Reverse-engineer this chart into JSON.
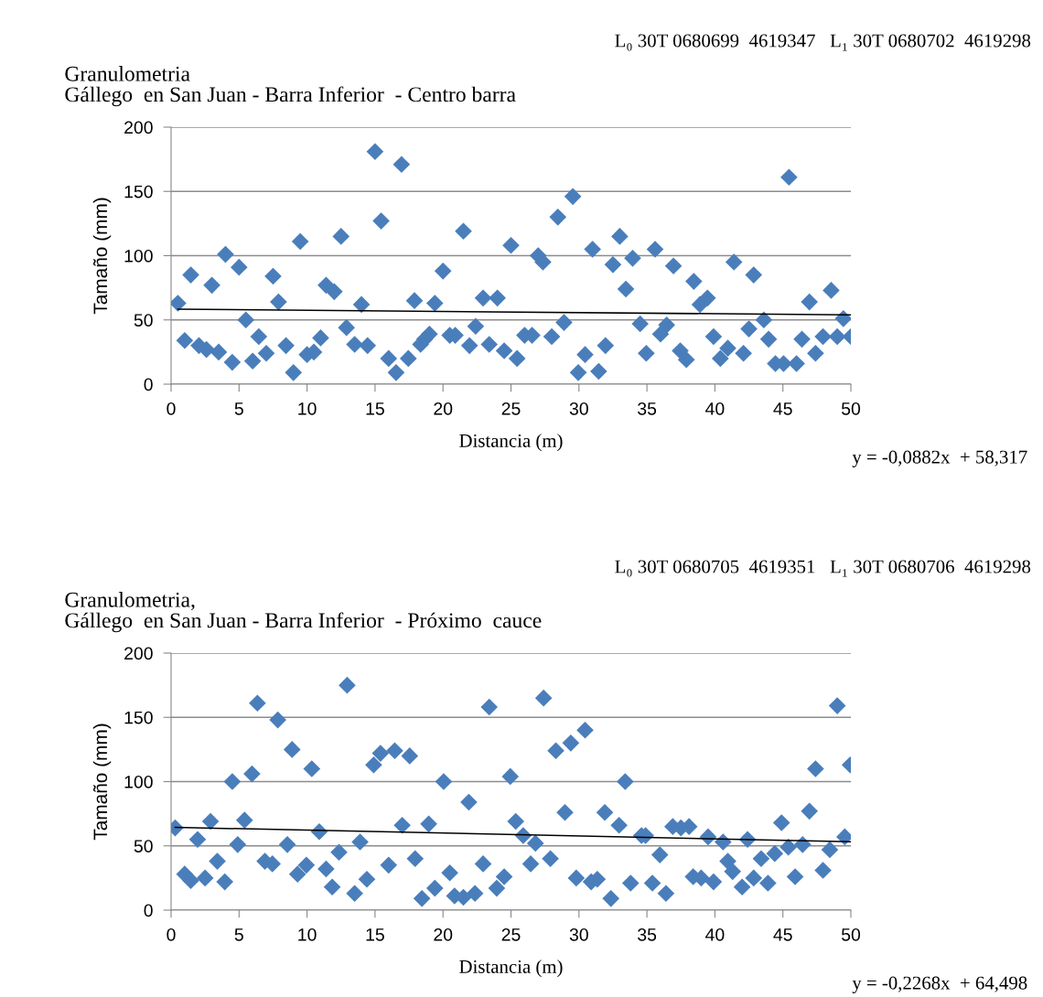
{
  "chart_data": [
    {
      "type": "scatter",
      "title": "Granulometria",
      "subtitle": "Gállego  en San Juan - Barra Inferior  - Centro barra",
      "xlabel": "Distancia (m)",
      "ylabel": "Tamaño (mm)",
      "annotations": [
        "L₀ 30T 0680699  4619347   L₁ 30T 0680702  4619298",
        "y = -0,0882x  + 58,317"
      ],
      "xlim": [
        0,
        50
      ],
      "xticks": [
        0,
        5,
        10,
        15,
        20,
        25,
        30,
        35,
        40,
        45,
        50
      ],
      "ylim": [
        0,
        200
      ],
      "yticks": [
        0,
        50,
        100,
        150,
        200
      ],
      "grid": "y",
      "legend": false,
      "series": [
        {
          "color": "#4a7ebb",
          "marker": "diamond",
          "x": [
            0.5,
            1.0,
            1.45,
            2.05,
            2.6,
            3.0,
            3.5,
            4.0,
            4.5,
            5.0,
            5.5,
            6.0,
            6.45,
            7.0,
            7.5,
            7.9,
            8.45,
            9.0,
            9.5,
            10.0,
            10.5,
            11.0,
            11.4,
            12.0,
            12.5,
            12.9,
            13.5,
            14.0,
            14.45,
            15.0,
            15.45,
            16.0,
            16.55,
            16.95,
            17.45,
            17.9,
            18.35,
            18.65,
            19.0,
            19.4,
            20.0,
            20.5,
            20.9,
            21.5,
            21.95,
            22.4,
            22.95,
            23.4,
            24.0,
            24.5,
            25.0,
            25.45,
            26.0,
            26.55,
            27.0,
            27.35,
            28.0,
            28.45,
            28.9,
            29.55,
            29.95,
            30.45,
            31.0,
            31.45,
            31.95,
            32.5,
            33.0,
            33.45,
            33.95,
            34.5,
            34.95,
            35.6,
            36.0,
            36.45,
            36.95,
            37.45,
            37.9,
            38.45,
            38.9,
            39.45,
            39.9,
            40.4,
            40.95,
            41.4,
            42.1,
            42.5,
            42.85,
            43.6,
            43.95,
            44.45,
            45.05,
            45.45,
            46.0,
            46.4,
            46.95,
            47.4,
            47.95,
            48.55,
            49.0,
            49.45,
            50.0
          ],
          "values": [
            63,
            34,
            85,
            30,
            27,
            77,
            25,
            101,
            17,
            91,
            50,
            18,
            37,
            24,
            84,
            64,
            30,
            9,
            111,
            23,
            25,
            36,
            77,
            72,
            115,
            44,
            31,
            62,
            30,
            181,
            127,
            20,
            9,
            171,
            20,
            65,
            31,
            35,
            39,
            63,
            88,
            38,
            38,
            119,
            30,
            45,
            67,
            31,
            67,
            26,
            108,
            20,
            38,
            38,
            100,
            95,
            37,
            130,
            48,
            146,
            9,
            23,
            105,
            10,
            30,
            93,
            115,
            74,
            98,
            47,
            24,
            105,
            39,
            46,
            92,
            26,
            19,
            80,
            62,
            67,
            37,
            20,
            28,
            95,
            24,
            43,
            85,
            50,
            35,
            16,
            16,
            161,
            16,
            35,
            64,
            24,
            37,
            73,
            37,
            51,
            37
          ]
        },
        {
          "type": "line",
          "color": "#000000",
          "marker": "none",
          "x": [
            0.5,
            50
          ],
          "values": [
            58.3,
            53.9
          ]
        }
      ]
    },
    {
      "type": "scatter",
      "title": "Granulometria,",
      "subtitle": "Gállego  en San Juan - Barra Inferior  - Próximo  cauce",
      "xlabel": "Distancia (m)",
      "ylabel": "Tamaño (mm)",
      "annotations": [
        "L₀ 30T 0680705  4619351   L₁ 30T 0680706  4619298",
        "y = -0,2268x  + 64,498"
      ],
      "xlim": [
        0,
        50
      ],
      "xticks": [
        0,
        5,
        10,
        15,
        20,
        25,
        30,
        35,
        40,
        45,
        50
      ],
      "ylim": [
        0,
        200
      ],
      "yticks": [
        0,
        50,
        100,
        150,
        200
      ],
      "grid": "y",
      "legend": false,
      "series": [
        {
          "color": "#4a7ebb",
          "marker": "diamond",
          "x": [
            0.3,
            1.0,
            1.45,
            1.95,
            2.5,
            2.9,
            3.4,
            3.95,
            4.5,
            4.9,
            5.4,
            5.95,
            6.35,
            6.9,
            7.45,
            7.85,
            8.55,
            8.9,
            9.3,
            9.95,
            10.35,
            10.9,
            11.4,
            11.85,
            12.35,
            12.95,
            13.5,
            13.9,
            14.4,
            14.9,
            15.4,
            16.0,
            16.45,
            17.0,
            17.55,
            17.95,
            18.45,
            18.95,
            19.4,
            20.05,
            20.5,
            20.85,
            21.5,
            21.9,
            22.35,
            22.95,
            23.4,
            23.95,
            24.5,
            24.95,
            25.35,
            25.9,
            26.45,
            26.8,
            27.4,
            27.9,
            28.3,
            28.97,
            29.4,
            29.8,
            30.45,
            30.9,
            31.35,
            31.9,
            32.35,
            32.95,
            33.4,
            33.8,
            34.6,
            34.9,
            35.4,
            35.95,
            36.4,
            36.9,
            37.5,
            38.1,
            38.4,
            38.99,
            39.5,
            39.9,
            40.6,
            40.95,
            41.3,
            42.0,
            42.4,
            42.85,
            43.4,
            43.9,
            44.4,
            44.9,
            45.4,
            45.9,
            46.45,
            46.95,
            47.4,
            47.95,
            48.45,
            49.0,
            49.55,
            49.95
          ],
          "values": [
            64,
            28,
            23,
            55,
            25,
            69,
            38,
            22,
            100,
            51,
            70,
            106,
            161,
            38,
            36,
            148,
            51,
            125,
            28,
            35,
            110,
            61,
            32,
            18,
            45,
            175,
            13,
            53,
            24,
            113,
            122,
            35,
            124,
            66,
            120,
            40,
            9,
            67,
            17,
            100,
            29,
            11,
            10,
            84,
            13,
            36,
            158,
            17,
            26,
            104,
            69,
            58,
            36,
            52,
            165,
            40,
            124,
            76,
            130,
            25,
            140,
            22,
            24,
            76,
            9,
            66,
            100,
            21,
            58,
            58,
            21,
            43,
            13,
            65,
            64,
            65,
            26,
            25,
            57,
            22,
            53,
            38,
            30,
            18,
            55,
            25,
            40,
            21,
            44,
            68,
            49,
            26,
            51,
            77,
            110,
            31,
            47,
            159,
            57,
            113
          ]
        },
        {
          "type": "line",
          "color": "#000000",
          "marker": "none",
          "x": [
            0.3,
            50
          ],
          "values": [
            64.4,
            53.2
          ]
        }
      ]
    }
  ]
}
